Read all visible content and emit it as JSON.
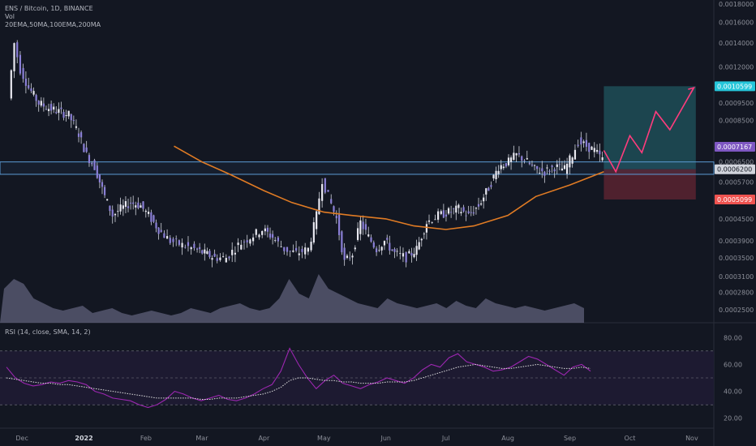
{
  "header": {
    "symbol_line": "ENS / Bitcoin, 1D, BINANCE",
    "vol_label": "Vol",
    "ma_label": "20EMA,50MA,100EMA,200MA"
  },
  "rsi_panel": {
    "label": "RSI (14, close, SMA, 14, 2)"
  },
  "colors": {
    "background": "#131722",
    "candle": "#d1d4dc",
    "ma_line": "#e07b24",
    "level_line": "#5b9bd5",
    "projection": "#ff3c7d",
    "target_zone": "#1e4d57",
    "stop_zone": "#5a2330",
    "rsi_line": "#9c27b0",
    "rsi_band": "#1f1b33",
    "volume": "#7a7a99"
  },
  "chart_data": {
    "type": "candlestick",
    "title": "ENS / Bitcoin, 1D, BINANCE",
    "price_axis": {
      "scale": "log",
      "range": [
        0.00023,
        0.00185
      ],
      "ticks": [
        "0.0018000",
        "0.0016000",
        "0.0014000",
        "0.0012000",
        "0.0010599",
        "0.0009500",
        "0.0008500",
        "0.0007167",
        "0.0006500",
        "0.0006200",
        "0.0005700",
        "0.0005099",
        "0.0004500",
        "0.0003900",
        "0.0003500",
        "0.0003100",
        "0.0002800",
        "0.0002500"
      ]
    },
    "time_axis": {
      "labels": [
        "Dec",
        "2022",
        "Feb",
        "Mar",
        "Apr",
        "May",
        "Jun",
        "Jul",
        "Aug",
        "Sep",
        "Oct",
        "Nov"
      ]
    },
    "price_path": [
      [
        "2021-11-25",
        0.00098
      ],
      [
        "2021-11-28",
        0.0014
      ],
      [
        "2021-12-01",
        0.00118
      ],
      [
        "2021-12-05",
        0.00105
      ],
      [
        "2021-12-10",
        0.00095
      ],
      [
        "2021-12-15",
        0.00092
      ],
      [
        "2021-12-20",
        0.0009
      ],
      [
        "2021-12-25",
        0.00088
      ],
      [
        "2021-12-30",
        0.00078
      ],
      [
        "2022-01-03",
        0.00068
      ],
      [
        "2022-01-07",
        0.00063
      ],
      [
        "2022-01-12",
        0.00052
      ],
      [
        "2022-01-16",
        0.00046
      ],
      [
        "2022-01-20",
        0.00048
      ],
      [
        "2022-01-25",
        0.0005
      ],
      [
        "2022-01-30",
        0.00049
      ],
      [
        "2022-02-03",
        0.00046
      ],
      [
        "2022-02-08",
        0.00042
      ],
      [
        "2022-02-14",
        0.00039
      ],
      [
        "2022-02-20",
        0.00038
      ],
      [
        "2022-02-26",
        0.00037
      ],
      [
        "2022-03-03",
        0.00036
      ],
      [
        "2022-03-08",
        0.00035
      ],
      [
        "2022-03-14",
        0.00035
      ],
      [
        "2022-03-20",
        0.00038
      ],
      [
        "2022-03-26",
        0.0004
      ],
      [
        "2022-04-01",
        0.00042
      ],
      [
        "2022-04-06",
        0.0004
      ],
      [
        "2022-04-12",
        0.00037
      ],
      [
        "2022-04-18",
        0.00036
      ],
      [
        "2022-04-24",
        0.00037
      ],
      [
        "2022-04-28",
        0.00046
      ],
      [
        "2022-05-01",
        0.00058
      ],
      [
        "2022-05-04",
        0.00052
      ],
      [
        "2022-05-08",
        0.00045
      ],
      [
        "2022-05-12",
        0.00034
      ],
      [
        "2022-05-16",
        0.00036
      ],
      [
        "2022-05-20",
        0.00044
      ],
      [
        "2022-05-24",
        0.0004
      ],
      [
        "2022-05-28",
        0.00037
      ],
      [
        "2022-06-01",
        0.00039
      ],
      [
        "2022-06-06",
        0.00036
      ],
      [
        "2022-06-12",
        0.00035
      ],
      [
        "2022-06-17",
        0.00037
      ],
      [
        "2022-06-22",
        0.00044
      ],
      [
        "2022-06-28",
        0.00046
      ],
      [
        "2022-07-03",
        0.00047
      ],
      [
        "2022-07-08",
        0.00048
      ],
      [
        "2022-07-13",
        0.00046
      ],
      [
        "2022-07-18",
        0.00049
      ],
      [
        "2022-07-23",
        0.00055
      ],
      [
        "2022-07-28",
        0.00063
      ],
      [
        "2022-08-02",
        0.00065
      ],
      [
        "2022-08-06",
        0.00068
      ],
      [
        "2022-08-10",
        0.00066
      ],
      [
        "2022-08-15",
        0.00062
      ],
      [
        "2022-08-20",
        0.00061
      ],
      [
        "2022-08-25",
        0.00063
      ],
      [
        "2022-08-30",
        0.00062
      ],
      [
        "2022-09-03",
        0.00068
      ],
      [
        "2022-09-06",
        0.00074
      ],
      [
        "2022-09-10",
        0.00072
      ],
      [
        "2022-09-14",
        0.0007
      ],
      [
        "2022-09-18",
        0.00066
      ]
    ],
    "moving_average": [
      [
        "2022-02-15",
        0.00072
      ],
      [
        "2022-03-01",
        0.00065
      ],
      [
        "2022-03-15",
        0.0006
      ],
      [
        "2022-04-01",
        0.00054
      ],
      [
        "2022-04-15",
        0.0005
      ],
      [
        "2022-05-01",
        0.00047
      ],
      [
        "2022-05-15",
        0.00046
      ],
      [
        "2022-06-01",
        0.00045
      ],
      [
        "2022-06-15",
        0.00043
      ],
      [
        "2022-07-01",
        0.00042
      ],
      [
        "2022-07-15",
        0.00043
      ],
      [
        "2022-08-01",
        0.00046
      ],
      [
        "2022-08-15",
        0.00052
      ],
      [
        "2022-09-01",
        0.00056
      ],
      [
        "2022-09-18",
        0.00061
      ]
    ],
    "horizontal_levels": [
      0.00065,
      0.0006
    ],
    "position_tool": {
      "entry": 0.00062,
      "target": 0.0010599,
      "stop": 0.0005099,
      "entry_label": "0.0006200",
      "target_label": "0.0010599",
      "stop_label": "0.0005099",
      "last_price_label": "0.0007167"
    },
    "projection_path": [
      [
        "2022-09-18",
        0.0007
      ],
      [
        "2022-09-24",
        0.00061
      ],
      [
        "2022-10-01",
        0.00077
      ],
      [
        "2022-10-07",
        0.00069
      ],
      [
        "2022-10-14",
        0.0009
      ],
      [
        "2022-10-21",
        0.0008
      ],
      [
        "2022-11-02",
        0.00105
      ]
    ],
    "volume_shape": [
      0.7,
      0.9,
      0.8,
      0.5,
      0.4,
      0.3,
      0.25,
      0.3,
      0.35,
      0.2,
      0.25,
      0.3,
      0.2,
      0.15,
      0.2,
      0.25,
      0.2,
      0.15,
      0.2,
      0.3,
      0.25,
      0.2,
      0.3,
      0.35,
      0.4,
      0.3,
      0.25,
      0.3,
      0.5,
      0.9,
      0.6,
      0.5,
      1.0,
      0.7,
      0.6,
      0.5,
      0.4,
      0.35,
      0.3,
      0.5,
      0.4,
      0.35,
      0.3,
      0.35,
      0.4,
      0.3,
      0.45,
      0.35,
      0.3,
      0.5,
      0.4,
      0.35,
      0.3,
      0.35,
      0.3,
      0.25,
      0.3,
      0.35,
      0.4,
      0.3
    ],
    "rsi_axis": {
      "ticks": [
        "80.00",
        "60.00",
        "40.00",
        "20.00"
      ],
      "range": [
        15,
        85
      ],
      "band": [
        30,
        70
      ]
    },
    "rsi_values": [
      58,
      50,
      46,
      44,
      45,
      47,
      46,
      48,
      47,
      45,
      40,
      38,
      35,
      34,
      33,
      30,
      28,
      30,
      34,
      40,
      38,
      35,
      33,
      35,
      37,
      34,
      33,
      35,
      38,
      42,
      45,
      55,
      72,
      60,
      50,
      42,
      48,
      52,
      46,
      44,
      42,
      45,
      47,
      50,
      48,
      46,
      50,
      56,
      60,
      58,
      65,
      68,
      62,
      60,
      58,
      55,
      56,
      58,
      62,
      66,
      64,
      60,
      56,
      52,
      58,
      60,
      55
    ],
    "rsi_ma_values": [
      50,
      49,
      48,
      47,
      46,
      46,
      45,
      45,
      44,
      43,
      42,
      41,
      40,
      39,
      38,
      37,
      36,
      35,
      35,
      35,
      35,
      35,
      34,
      34,
      35,
      35,
      35,
      36,
      37,
      38,
      40,
      43,
      48,
      50,
      50,
      49,
      48,
      48,
      47,
      47,
      46,
      46,
      46,
      47,
      47,
      47,
      48,
      50,
      52,
      54,
      56,
      58,
      59,
      60,
      59,
      58,
      57,
      57,
      58,
      59,
      60,
      59,
      58,
      57,
      57,
      58,
      57
    ]
  }
}
